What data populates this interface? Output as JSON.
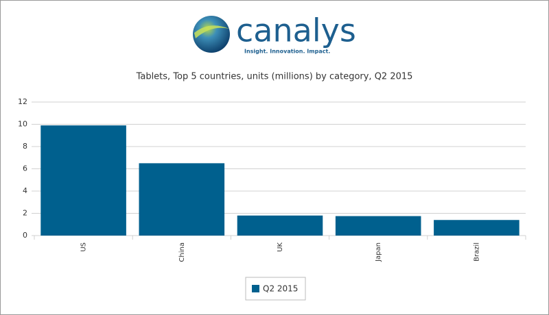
{
  "chart_data": {
    "type": "bar",
    "brand": "canalys",
    "tagline": "Insight. Innovation. Impact.",
    "title": "Tablets, Top 5 countries, units (millions) by category, Q2 2015",
    "categories": [
      "US",
      "China",
      "UK",
      "Japan",
      "Brazil"
    ],
    "series": [
      {
        "name": "Q2 2015",
        "color": "#00608e",
        "values": [
          9.9,
          6.5,
          1.8,
          1.75,
          1.4
        ]
      }
    ],
    "ylim": [
      0,
      12
    ],
    "yticks": [
      0,
      2,
      4,
      6,
      8,
      10,
      12
    ],
    "grid": true
  }
}
